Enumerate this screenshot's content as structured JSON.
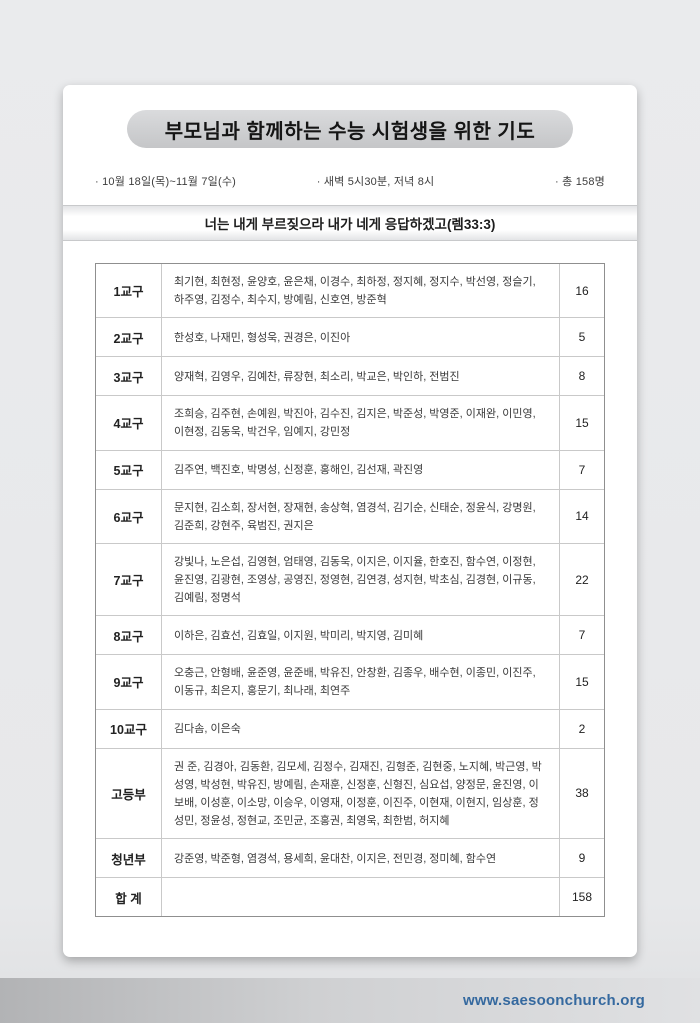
{
  "page": {
    "title": "부모님과 함께하는 수능 시험생을 위한 기도",
    "info": {
      "period": "· 10월 18일(목)~11월 7일(수)",
      "time": "· 새벽 5시30분, 저녁 8시",
      "total": "· 총 158명"
    },
    "verse": "너는 내게 부르짖으라 내가 네게 응답하겠고(렘33:3)"
  },
  "table": {
    "rows": [
      {
        "group": "1교구",
        "names": "최기현, 최현정, 윤양호, 윤은채, 이경수, 최하정, 정지혜, 정지수, 박선영, 정슬기, 하주영, 김정수, 최수지, 방예림, 신호연, 방준혁",
        "count": "16"
      },
      {
        "group": "2교구",
        "names": "한성호, 나재민, 형성욱, 권경은, 이진아",
        "count": "5"
      },
      {
        "group": "3교구",
        "names": "양재혁, 김영우, 김예찬, 류장현, 최소리, 박교은, 박인하, 전범진",
        "count": "8"
      },
      {
        "group": "4교구",
        "names": "조희승, 김주현, 손예원, 박진아, 김수진, 김지은, 박준성, 박영준, 이재완, 이민영, 이현정, 김동욱, 박건우, 임예지, 강민정",
        "count": "15"
      },
      {
        "group": "5교구",
        "names": "김주연, 백진호, 박명성, 신정훈, 홍해인, 김선재, 곽진영",
        "count": "7"
      },
      {
        "group": "6교구",
        "names": "문지현, 김소희, 장서현, 장재현, 송상혁, 염경석, 김기순, 신태순, 정윤식, 강명원, 김준희, 강현주, 육범진, 권지은",
        "count": "14"
      },
      {
        "group": "7교구",
        "names": "강빛나, 노은섭, 김영현, 엄태영, 김동욱, 이지은, 이지율, 한호진, 함수연, 이정현, 윤진영, 김광현, 조영상, 공영진, 정영현, 김연경, 성지현, 박초심, 김경현, 이규동, 김예림, 정명석",
        "count": "22"
      },
      {
        "group": "8교구",
        "names": "이하은, 김효선, 김효일, 이지원, 박미리, 박지영, 김미혜",
        "count": "7"
      },
      {
        "group": "9교구",
        "names": "오충근, 안형배, 윤준영, 윤준배, 박유진, 안창환, 김종우, 배수현, 이종민, 이진주, 이동규, 최은지, 홍문기, 최나래, 최연주",
        "count": "15"
      },
      {
        "group": "10교구",
        "names": "김다솜, 이은숙",
        "count": "2"
      },
      {
        "group": "고등부",
        "names": "권 준, 김경아, 김동환, 김모세, 김정수, 김재진, 김형준, 김현중, 노지혜, 박근영, 박성영, 박성현, 박유진, 방예림, 손재훈, 신정훈, 신형진, 심요섭, 양정문, 윤진영, 이보배, 이성훈, 이소망, 이승우, 이영재, 이정훈, 이진주, 이현재, 이현지, 임상훈, 정성민, 정윤성, 정현교, 조민균, 조홍권, 최영욱, 최한범, 허지혜",
        "count": "38"
      },
      {
        "group": "청년부",
        "names": "강준영, 박준형, 염경석, 용세희, 윤대찬, 이지은, 전민경, 정미혜, 함수연",
        "count": "9"
      },
      {
        "group": "합 계",
        "names": "",
        "count": "158"
      }
    ]
  },
  "footer": {
    "url": "www.saesoonchurch.org"
  },
  "colors": {
    "url_blue": "#35699f",
    "title_pill_gray": "#cecfd1",
    "page_background": "#eaebed"
  }
}
